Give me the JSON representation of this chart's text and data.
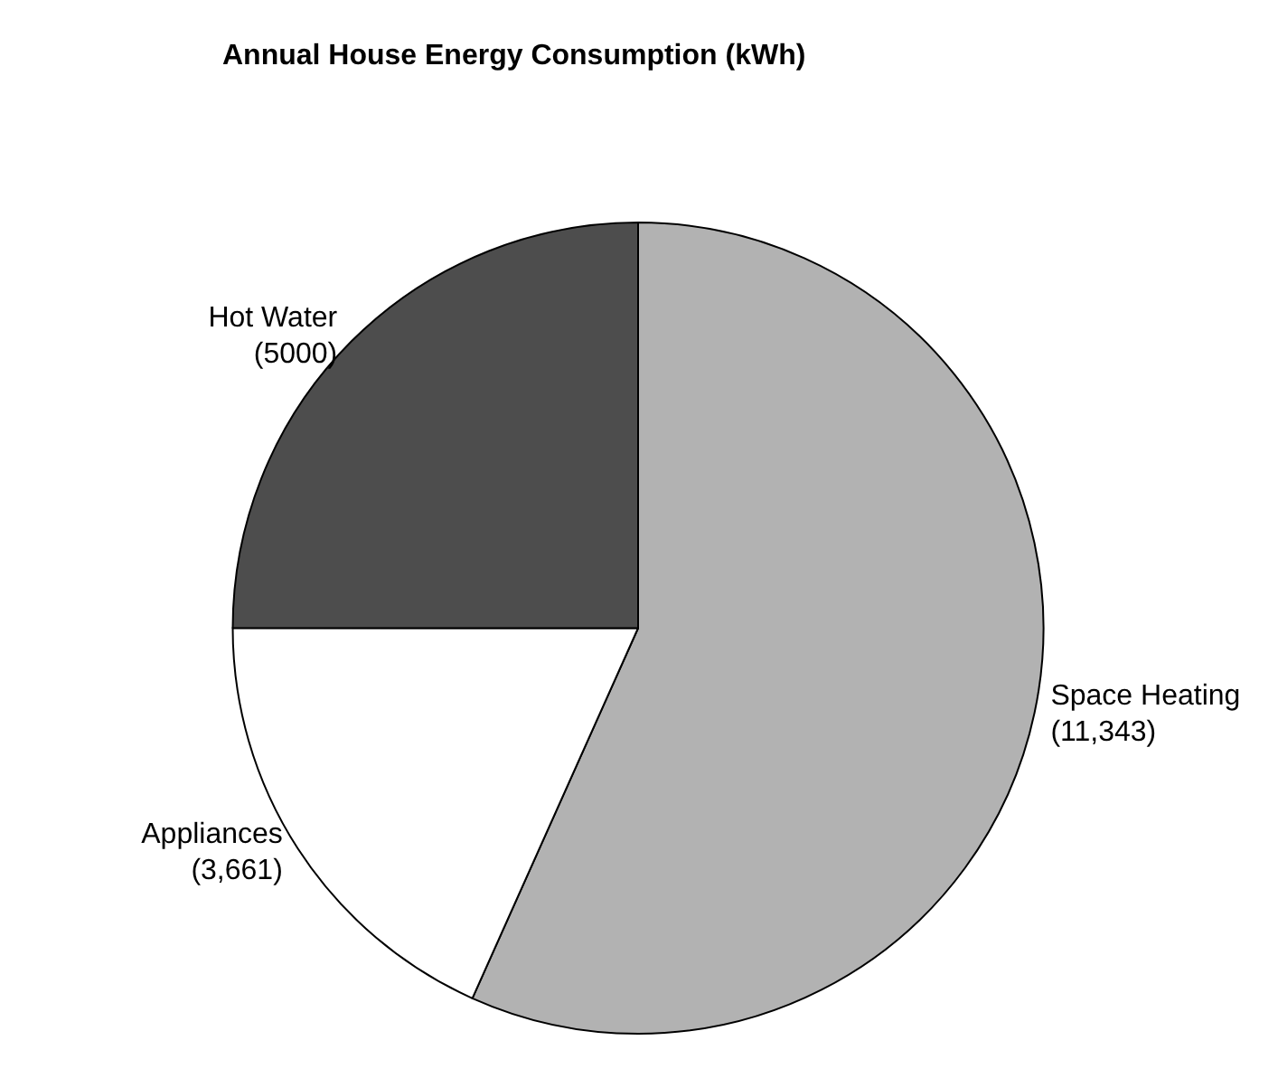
{
  "chart_data": {
    "type": "pie",
    "title": "Annual House Energy Consumption (kWh)",
    "categories": [
      "Space Heating",
      "Appliances",
      "Hot Water"
    ],
    "values": [
      11343,
      3661,
      5000
    ],
    "value_labels": [
      "(11,343)",
      "(3,661)",
      "(5000)"
    ],
    "colors": [
      "#b2b2b2",
      "#ffffff",
      "#4d4d4d"
    ],
    "legend": false
  }
}
